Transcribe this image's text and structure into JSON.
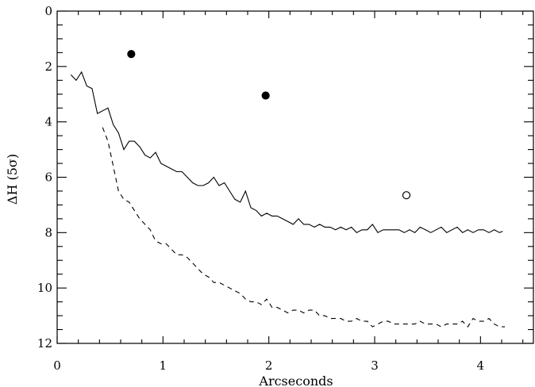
{
  "chart_data": {
    "type": "line",
    "title": "",
    "xlabel": "Arcseconds",
    "ylabel": "ΔH (5σ)",
    "xlim": [
      0,
      4.5
    ],
    "ylim": [
      12,
      0
    ],
    "y_inverted": true,
    "x_ticks": [
      0,
      1,
      2,
      3,
      4
    ],
    "x_tick_labels": [
      "0",
      "1",
      "2",
      "3",
      "4"
    ],
    "x_minor_step": 0.2,
    "y_ticks": [
      0,
      2,
      4,
      6,
      8,
      10,
      12
    ],
    "y_tick_labels": [
      "0",
      "2",
      "4",
      "6",
      "8",
      "10",
      "12"
    ],
    "y_minor_step": 0.5,
    "grid": false,
    "legend": "none",
    "series": [
      {
        "style": "solid",
        "x": [
          0.13,
          0.18,
          0.23,
          0.28,
          0.33,
          0.38,
          0.43,
          0.48,
          0.53,
          0.58,
          0.63,
          0.68,
          0.73,
          0.78,
          0.83,
          0.88,
          0.93,
          0.98,
          1.03,
          1.08,
          1.13,
          1.18,
          1.23,
          1.28,
          1.33,
          1.38,
          1.43,
          1.48,
          1.53,
          1.58,
          1.63,
          1.68,
          1.73,
          1.78,
          1.83,
          1.88,
          1.93,
          1.98,
          2.03,
          2.08,
          2.13,
          2.18,
          2.23,
          2.28,
          2.33,
          2.38,
          2.43,
          2.48,
          2.53,
          2.58,
          2.63,
          2.68,
          2.73,
          2.78,
          2.83,
          2.88,
          2.93,
          2.98,
          3.03,
          3.08,
          3.13,
          3.18,
          3.23,
          3.28,
          3.33,
          3.38,
          3.43,
          3.48,
          3.53,
          3.58,
          3.63,
          3.68,
          3.73,
          3.78,
          3.83,
          3.88,
          3.93,
          3.98,
          4.03,
          4.08,
          4.13,
          4.18,
          4.21
        ],
        "y": [
          2.3,
          2.5,
          2.2,
          2.7,
          2.8,
          3.7,
          3.6,
          3.5,
          4.1,
          4.4,
          5.0,
          4.7,
          4.7,
          4.9,
          5.2,
          5.3,
          5.1,
          5.5,
          5.6,
          5.7,
          5.8,
          5.8,
          6.0,
          6.2,
          6.3,
          6.3,
          6.2,
          6.0,
          6.3,
          6.2,
          6.5,
          6.8,
          6.9,
          6.5,
          7.1,
          7.2,
          7.4,
          7.3,
          7.4,
          7.4,
          7.5,
          7.6,
          7.7,
          7.5,
          7.7,
          7.7,
          7.8,
          7.7,
          7.8,
          7.8,
          7.9,
          7.8,
          7.9,
          7.8,
          8.0,
          7.9,
          7.9,
          7.7,
          8.0,
          7.9,
          7.9,
          7.9,
          7.9,
          8.0,
          7.9,
          8.0,
          7.8,
          7.9,
          8.0,
          7.9,
          7.8,
          8.0,
          7.9,
          7.8,
          8.0,
          7.9,
          8.0,
          7.9,
          7.9,
          8.0,
          7.9,
          8.0,
          7.95
        ]
      },
      {
        "style": "dashed",
        "x": [
          0.43,
          0.48,
          0.53,
          0.58,
          0.63,
          0.68,
          0.73,
          0.78,
          0.83,
          0.88,
          0.93,
          0.98,
          1.03,
          1.08,
          1.13,
          1.18,
          1.23,
          1.28,
          1.33,
          1.38,
          1.43,
          1.48,
          1.53,
          1.58,
          1.63,
          1.68,
          1.73,
          1.78,
          1.83,
          1.88,
          1.93,
          1.98,
          2.03,
          2.08,
          2.13,
          2.18,
          2.23,
          2.28,
          2.33,
          2.38,
          2.43,
          2.48,
          2.53,
          2.58,
          2.63,
          2.68,
          2.73,
          2.78,
          2.83,
          2.88,
          2.93,
          2.98,
          3.03,
          3.08,
          3.13,
          3.18,
          3.23,
          3.28,
          3.33,
          3.38,
          3.43,
          3.48,
          3.53,
          3.58,
          3.63,
          3.68,
          3.73,
          3.78,
          3.83,
          3.88,
          3.93,
          3.98,
          4.03,
          4.08,
          4.13,
          4.18,
          4.23
        ],
        "y": [
          4.2,
          4.7,
          5.6,
          6.5,
          6.8,
          6.9,
          7.2,
          7.5,
          7.7,
          7.9,
          8.3,
          8.4,
          8.4,
          8.6,
          8.8,
          8.8,
          8.9,
          9.1,
          9.3,
          9.5,
          9.6,
          9.8,
          9.8,
          9.9,
          10.0,
          10.1,
          10.2,
          10.4,
          10.5,
          10.5,
          10.6,
          10.4,
          10.7,
          10.7,
          10.8,
          10.9,
          10.8,
          10.8,
          10.9,
          10.8,
          10.8,
          11.0,
          11.0,
          11.1,
          11.1,
          11.1,
          11.2,
          11.2,
          11.1,
          11.2,
          11.2,
          11.4,
          11.3,
          11.2,
          11.2,
          11.3,
          11.3,
          11.3,
          11.3,
          11.3,
          11.2,
          11.3,
          11.3,
          11.3,
          11.4,
          11.3,
          11.3,
          11.3,
          11.2,
          11.4,
          11.1,
          11.2,
          11.2,
          11.1,
          11.3,
          11.4,
          11.4
        ]
      },
      {
        "style": "points",
        "points": [
          {
            "x": 0.7,
            "y": 1.55,
            "filled": true
          },
          {
            "x": 1.97,
            "y": 3.05,
            "filled": true
          },
          {
            "x": 3.3,
            "y": 6.65,
            "filled": false
          }
        ]
      }
    ]
  }
}
